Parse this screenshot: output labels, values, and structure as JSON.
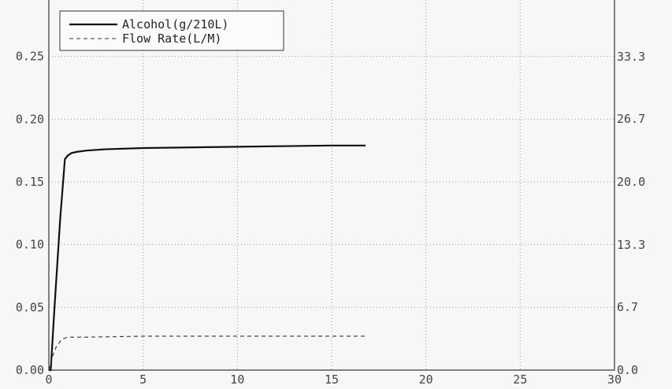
{
  "chart_data": {
    "type": "line",
    "title": "",
    "xlabel": "",
    "ylabel": "",
    "y2label": "",
    "xlim": [
      0,
      30
    ],
    "ylim": [
      0,
      0.3
    ],
    "y2lim": [
      0,
      40
    ],
    "x_ticks": [
      "0",
      "5",
      "10",
      "15",
      "20",
      "25",
      "30"
    ],
    "y_ticks": [
      "0.00",
      "0.05",
      "0.10",
      "0.15",
      "0.20",
      "0.25"
    ],
    "y2_ticks": [
      "0.0",
      "6.7",
      "13.3",
      "20.0",
      "26.7",
      "33.3"
    ],
    "grid": true,
    "legend_position": "top-left",
    "series": [
      {
        "name": "Alcohol(g/210L)",
        "axis": "left",
        "style": "solid",
        "color": "#111111",
        "x": [
          0,
          0.1,
          0.3,
          0.6,
          0.85,
          1.0,
          1.2,
          1.5,
          2,
          3,
          5,
          10,
          15,
          16.8
        ],
        "y": [
          0,
          0.0,
          0.05,
          0.12,
          0.168,
          0.171,
          0.173,
          0.174,
          0.175,
          0.176,
          0.177,
          0.178,
          0.179,
          0.179
        ]
      },
      {
        "name": "Flow Rate(L/M)",
        "axis": "right",
        "style": "dashed",
        "color": "#333333",
        "x": [
          0,
          0.2,
          0.4,
          0.7,
          1.0,
          2,
          5,
          10,
          15,
          16.8
        ],
        "y": [
          0,
          1.5,
          2.5,
          3.3,
          3.5,
          3.5,
          3.6,
          3.6,
          3.6,
          3.6
        ]
      }
    ]
  }
}
